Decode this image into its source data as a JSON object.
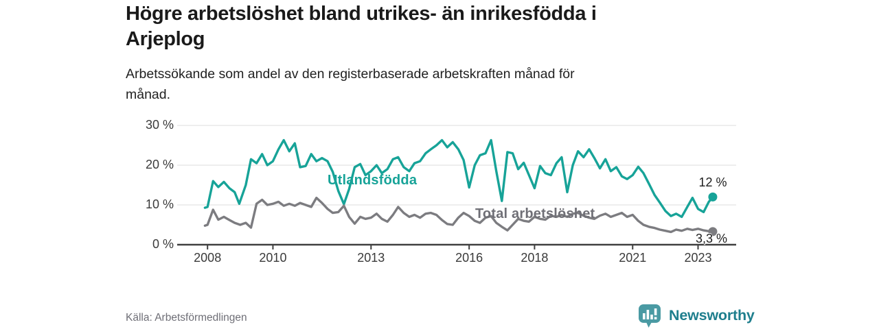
{
  "header": {
    "title_line1": "Högre arbetslöshet bland utrikes- än inrikesfödda i",
    "title_line2": "Arjeplog",
    "subtitle_line1": "Arbetssökande som andel av den registerbaserade arbetskraften månad för",
    "subtitle_line2": "månad."
  },
  "footer": {
    "source": "Källa: Arbetsförmedlingen",
    "brand": "Newsworthy"
  },
  "colors": {
    "accent_teal": "#17a398",
    "gray_line": "#7c7c80",
    "gray_label": "#6f6f76",
    "axis": "#3f3f3f",
    "grid": "#e3e3e3",
    "logo_bubble": "#4a9aa3",
    "logo_text": "#1e7e8d"
  },
  "chart_data": {
    "type": "line",
    "title": "Högre arbetslöshet bland utrikes- än inrikesfödda i Arjeplog",
    "subtitle": "Arbetssökande som andel av den registerbaserade arbetskraften månad för månad.",
    "xlabel": "",
    "ylabel": "",
    "ylim": [
      0,
      30
    ],
    "xlim": [
      2007.9,
      2023.5
    ],
    "grid": "horizontal",
    "legend_position": "inline-labels",
    "y_ticks": [
      {
        "label": "30 %",
        "value": 30
      },
      {
        "label": "20 %",
        "value": 20
      },
      {
        "label": "10 %",
        "value": 10
      },
      {
        "label": "0 %",
        "value": 0
      }
    ],
    "x_ticks": [
      {
        "label": "2008",
        "year": 2008
      },
      {
        "label": "2010",
        "year": 2010
      },
      {
        "label": "2013",
        "year": 2013
      },
      {
        "label": "2016",
        "year": 2016
      },
      {
        "label": "2018",
        "year": 2018
      },
      {
        "label": "2021",
        "year": 2021
      },
      {
        "label": "2023",
        "year": 2023
      }
    ],
    "series": [
      {
        "name": "Utlandsfödda",
        "color": "#17a398",
        "end_label": "12 %",
        "last_value": 12.0,
        "points": [
          [
            2007.92,
            9.3
          ],
          [
            2008.0,
            9.5
          ],
          [
            2008.17,
            16.0
          ],
          [
            2008.33,
            14.5
          ],
          [
            2008.5,
            15.8
          ],
          [
            2008.67,
            14.2
          ],
          [
            2008.83,
            13.2
          ],
          [
            2008.97,
            10.3
          ],
          [
            2009.17,
            15.0
          ],
          [
            2009.33,
            21.5
          ],
          [
            2009.5,
            20.5
          ],
          [
            2009.67,
            22.8
          ],
          [
            2009.83,
            20.0
          ],
          [
            2010.0,
            21.0
          ],
          [
            2010.17,
            24.0
          ],
          [
            2010.33,
            26.3
          ],
          [
            2010.5,
            23.5
          ],
          [
            2010.67,
            25.5
          ],
          [
            2010.83,
            19.5
          ],
          [
            2011.0,
            19.8
          ],
          [
            2011.17,
            22.8
          ],
          [
            2011.33,
            21.0
          ],
          [
            2011.5,
            21.8
          ],
          [
            2011.67,
            21.0
          ],
          [
            2011.83,
            18.3
          ],
          [
            2012.0,
            13.5
          ],
          [
            2012.17,
            10.2
          ],
          [
            2012.33,
            14.0
          ],
          [
            2012.5,
            19.5
          ],
          [
            2012.67,
            20.3
          ],
          [
            2012.83,
            17.5
          ],
          [
            2013.0,
            18.5
          ],
          [
            2013.17,
            20.0
          ],
          [
            2013.33,
            18.0
          ],
          [
            2013.5,
            19.0
          ],
          [
            2013.67,
            21.5
          ],
          [
            2013.83,
            22.0
          ],
          [
            2014.0,
            19.5
          ],
          [
            2014.17,
            18.5
          ],
          [
            2014.33,
            20.5
          ],
          [
            2014.5,
            21.0
          ],
          [
            2014.67,
            23.0
          ],
          [
            2014.83,
            24.0
          ],
          [
            2015.0,
            25.0
          ],
          [
            2015.17,
            26.3
          ],
          [
            2015.33,
            24.5
          ],
          [
            2015.5,
            25.8
          ],
          [
            2015.67,
            24.0
          ],
          [
            2015.83,
            21.3
          ],
          [
            2016.0,
            14.4
          ],
          [
            2016.17,
            20.0
          ],
          [
            2016.33,
            22.5
          ],
          [
            2016.5,
            23.0
          ],
          [
            2016.67,
            26.3
          ],
          [
            2016.83,
            18.5
          ],
          [
            2017.0,
            11.0
          ],
          [
            2017.17,
            23.3
          ],
          [
            2017.33,
            23.0
          ],
          [
            2017.5,
            19.0
          ],
          [
            2017.67,
            20.6
          ],
          [
            2017.83,
            17.5
          ],
          [
            2018.0,
            14.2
          ],
          [
            2018.17,
            19.8
          ],
          [
            2018.33,
            18.0
          ],
          [
            2018.5,
            17.5
          ],
          [
            2018.67,
            20.5
          ],
          [
            2018.83,
            22.0
          ],
          [
            2019.0,
            13.2
          ],
          [
            2019.17,
            20.0
          ],
          [
            2019.33,
            23.5
          ],
          [
            2019.5,
            22.0
          ],
          [
            2019.67,
            24.0
          ],
          [
            2019.83,
            21.8
          ],
          [
            2020.0,
            19.2
          ],
          [
            2020.17,
            21.5
          ],
          [
            2020.33,
            18.5
          ],
          [
            2020.5,
            19.5
          ],
          [
            2020.67,
            17.2
          ],
          [
            2020.83,
            16.5
          ],
          [
            2021.0,
            17.5
          ],
          [
            2021.17,
            19.6
          ],
          [
            2021.33,
            18.0
          ],
          [
            2021.5,
            15.3
          ],
          [
            2021.67,
            12.5
          ],
          [
            2021.83,
            10.6
          ],
          [
            2022.0,
            8.5
          ],
          [
            2022.17,
            7.2
          ],
          [
            2022.33,
            7.8
          ],
          [
            2022.5,
            7.0
          ],
          [
            2022.67,
            9.5
          ],
          [
            2022.83,
            11.8
          ],
          [
            2023.0,
            9.0
          ],
          [
            2023.17,
            8.2
          ],
          [
            2023.33,
            10.8
          ],
          [
            2023.45,
            12.0
          ]
        ]
      },
      {
        "name": "Total arbetslöshet",
        "color": "#7c7c80",
        "end_label": "3,3 %",
        "last_value": 3.3,
        "points": [
          [
            2007.92,
            4.8
          ],
          [
            2008.0,
            5.0
          ],
          [
            2008.17,
            8.8
          ],
          [
            2008.33,
            6.3
          ],
          [
            2008.5,
            7.0
          ],
          [
            2008.67,
            6.2
          ],
          [
            2008.83,
            5.5
          ],
          [
            2009.0,
            5.0
          ],
          [
            2009.17,
            5.5
          ],
          [
            2009.33,
            4.3
          ],
          [
            2009.5,
            10.3
          ],
          [
            2009.67,
            11.3
          ],
          [
            2009.83,
            10.0
          ],
          [
            2010.0,
            10.3
          ],
          [
            2010.17,
            10.8
          ],
          [
            2010.33,
            9.8
          ],
          [
            2010.5,
            10.3
          ],
          [
            2010.67,
            9.8
          ],
          [
            2010.83,
            10.5
          ],
          [
            2011.0,
            10.0
          ],
          [
            2011.17,
            9.5
          ],
          [
            2011.33,
            11.8
          ],
          [
            2011.5,
            10.5
          ],
          [
            2011.67,
            9.0
          ],
          [
            2011.83,
            8.0
          ],
          [
            2012.0,
            8.2
          ],
          [
            2012.17,
            9.8
          ],
          [
            2012.33,
            7.0
          ],
          [
            2012.5,
            5.3
          ],
          [
            2012.67,
            7.0
          ],
          [
            2012.83,
            6.5
          ],
          [
            2013.0,
            6.8
          ],
          [
            2013.17,
            7.8
          ],
          [
            2013.33,
            6.5
          ],
          [
            2013.5,
            5.8
          ],
          [
            2013.67,
            7.5
          ],
          [
            2013.83,
            9.5
          ],
          [
            2014.0,
            8.0
          ],
          [
            2014.17,
            7.0
          ],
          [
            2014.33,
            7.5
          ],
          [
            2014.5,
            6.8
          ],
          [
            2014.67,
            7.8
          ],
          [
            2014.83,
            8.0
          ],
          [
            2015.0,
            7.5
          ],
          [
            2015.17,
            6.2
          ],
          [
            2015.33,
            5.2
          ],
          [
            2015.5,
            5.0
          ],
          [
            2015.67,
            6.8
          ],
          [
            2015.83,
            8.0
          ],
          [
            2016.0,
            7.2
          ],
          [
            2016.17,
            6.0
          ],
          [
            2016.33,
            5.5
          ],
          [
            2016.5,
            6.8
          ],
          [
            2016.67,
            7.2
          ],
          [
            2016.83,
            5.5
          ],
          [
            2017.0,
            4.5
          ],
          [
            2017.17,
            3.6
          ],
          [
            2017.33,
            5.0
          ],
          [
            2017.5,
            6.5
          ],
          [
            2017.67,
            6.0
          ],
          [
            2017.83,
            5.8
          ],
          [
            2018.0,
            7.0
          ],
          [
            2018.17,
            6.5
          ],
          [
            2018.33,
            6.3
          ],
          [
            2018.5,
            7.3
          ],
          [
            2018.67,
            7.0
          ],
          [
            2018.83,
            7.5
          ],
          [
            2019.0,
            7.0
          ],
          [
            2019.17,
            7.8
          ],
          [
            2019.33,
            8.0
          ],
          [
            2019.5,
            7.3
          ],
          [
            2019.67,
            6.8
          ],
          [
            2019.83,
            6.5
          ],
          [
            2020.0,
            7.3
          ],
          [
            2020.17,
            7.8
          ],
          [
            2020.33,
            7.0
          ],
          [
            2020.5,
            7.5
          ],
          [
            2020.67,
            8.0
          ],
          [
            2020.83,
            7.0
          ],
          [
            2021.0,
            7.5
          ],
          [
            2021.17,
            6.0
          ],
          [
            2021.33,
            5.0
          ],
          [
            2021.5,
            4.5
          ],
          [
            2021.67,
            4.2
          ],
          [
            2021.83,
            3.8
          ],
          [
            2022.0,
            3.5
          ],
          [
            2022.17,
            3.2
          ],
          [
            2022.33,
            3.8
          ],
          [
            2022.5,
            3.5
          ],
          [
            2022.67,
            4.0
          ],
          [
            2022.83,
            3.7
          ],
          [
            2023.0,
            4.0
          ],
          [
            2023.17,
            3.6
          ],
          [
            2023.33,
            3.4
          ],
          [
            2023.45,
            3.3
          ]
        ]
      }
    ]
  }
}
